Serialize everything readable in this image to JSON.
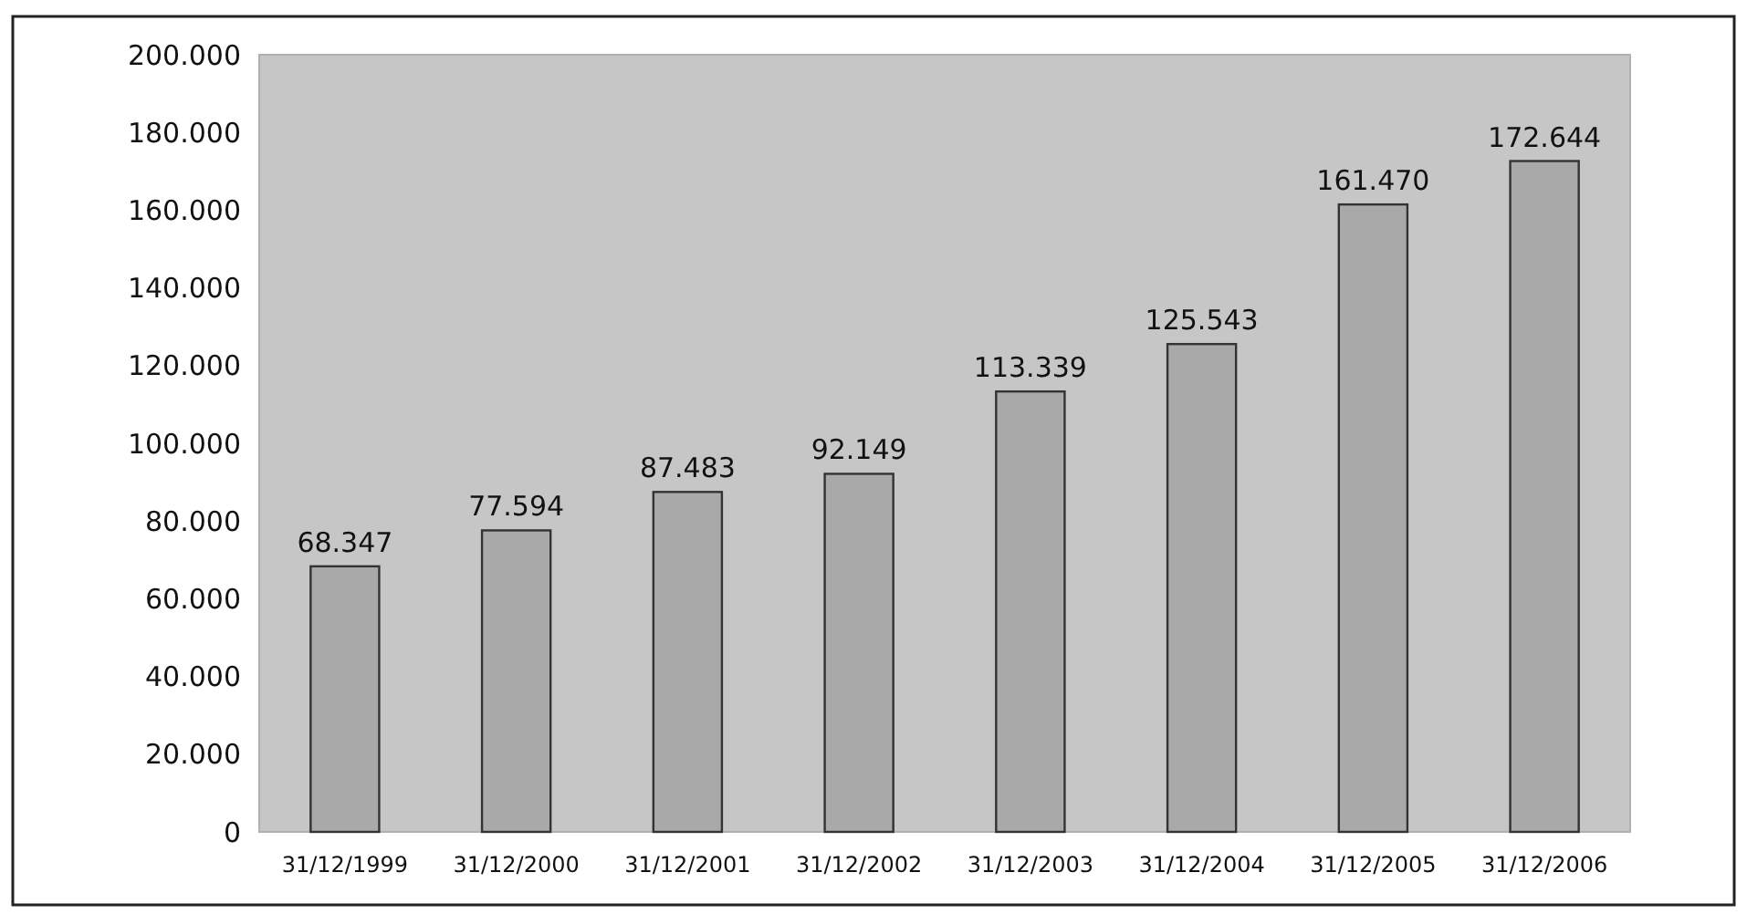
{
  "chart_data": {
    "type": "bar",
    "categories": [
      "31/12/1999",
      "31/12/2000",
      "31/12/2001",
      "31/12/2002",
      "31/12/2003",
      "31/12/2004",
      "31/12/2005",
      "31/12/2006"
    ],
    "values": [
      68347,
      77594,
      87483,
      92149,
      113339,
      125543,
      161470,
      172644
    ],
    "value_labels": [
      "68.347",
      "77.594",
      "87.483",
      "92.149",
      "113.339",
      "125.543",
      "161.470",
      "172.644"
    ],
    "color": "#a9a9a9",
    "ylim": [
      0,
      200000
    ],
    "yticks": [
      {
        "value": 0,
        "label": "0"
      },
      {
        "value": 20000,
        "label": "20.000"
      },
      {
        "value": 40000,
        "label": "40.000"
      },
      {
        "value": 60000,
        "label": "60.000"
      },
      {
        "value": 80000,
        "label": "80.000"
      },
      {
        "value": 100000,
        "label": "100.000"
      },
      {
        "value": 120000,
        "label": "120.000"
      },
      {
        "value": 140000,
        "label": "140.000"
      },
      {
        "value": 160000,
        "label": "160.000"
      },
      {
        "value": 180000,
        "label": "180.000"
      },
      {
        "value": 200000,
        "label": "200.000"
      }
    ],
    "grid": false
  }
}
